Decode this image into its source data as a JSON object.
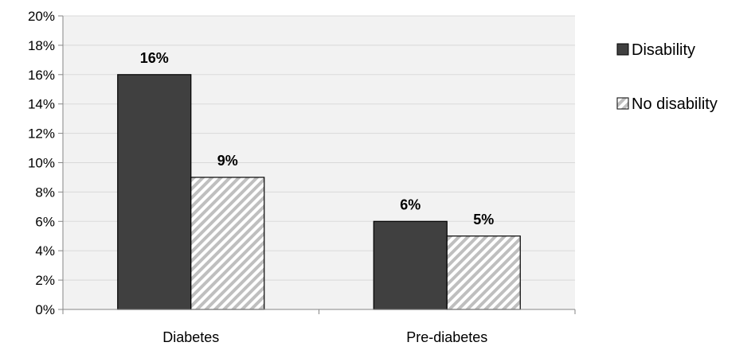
{
  "chart_data": {
    "type": "bar",
    "title": "",
    "xlabel": "",
    "ylabel": "",
    "categories": [
      "Diabetes",
      "Pre-diabetes"
    ],
    "series": [
      {
        "name": "Disability",
        "values": [
          16,
          6
        ],
        "labels": [
          "16%",
          "6%"
        ],
        "fill": "solid",
        "color": "#404040"
      },
      {
        "name": "No disability",
        "values": [
          9,
          5
        ],
        "labels": [
          "9%",
          "5%"
        ],
        "fill": "hatched",
        "color": "#ffffff",
        "hatch_color": "#bfbfbf"
      }
    ],
    "ylim": [
      0,
      20
    ],
    "ytick_step": 2,
    "ytick_labels": [
      "0%",
      "2%",
      "4%",
      "6%",
      "8%",
      "10%",
      "12%",
      "14%",
      "16%",
      "18%",
      "20%"
    ],
    "grid": true,
    "legend_position": "right",
    "plot_background": "#f2f2f2",
    "gridline_color": "#d9d9d9"
  }
}
